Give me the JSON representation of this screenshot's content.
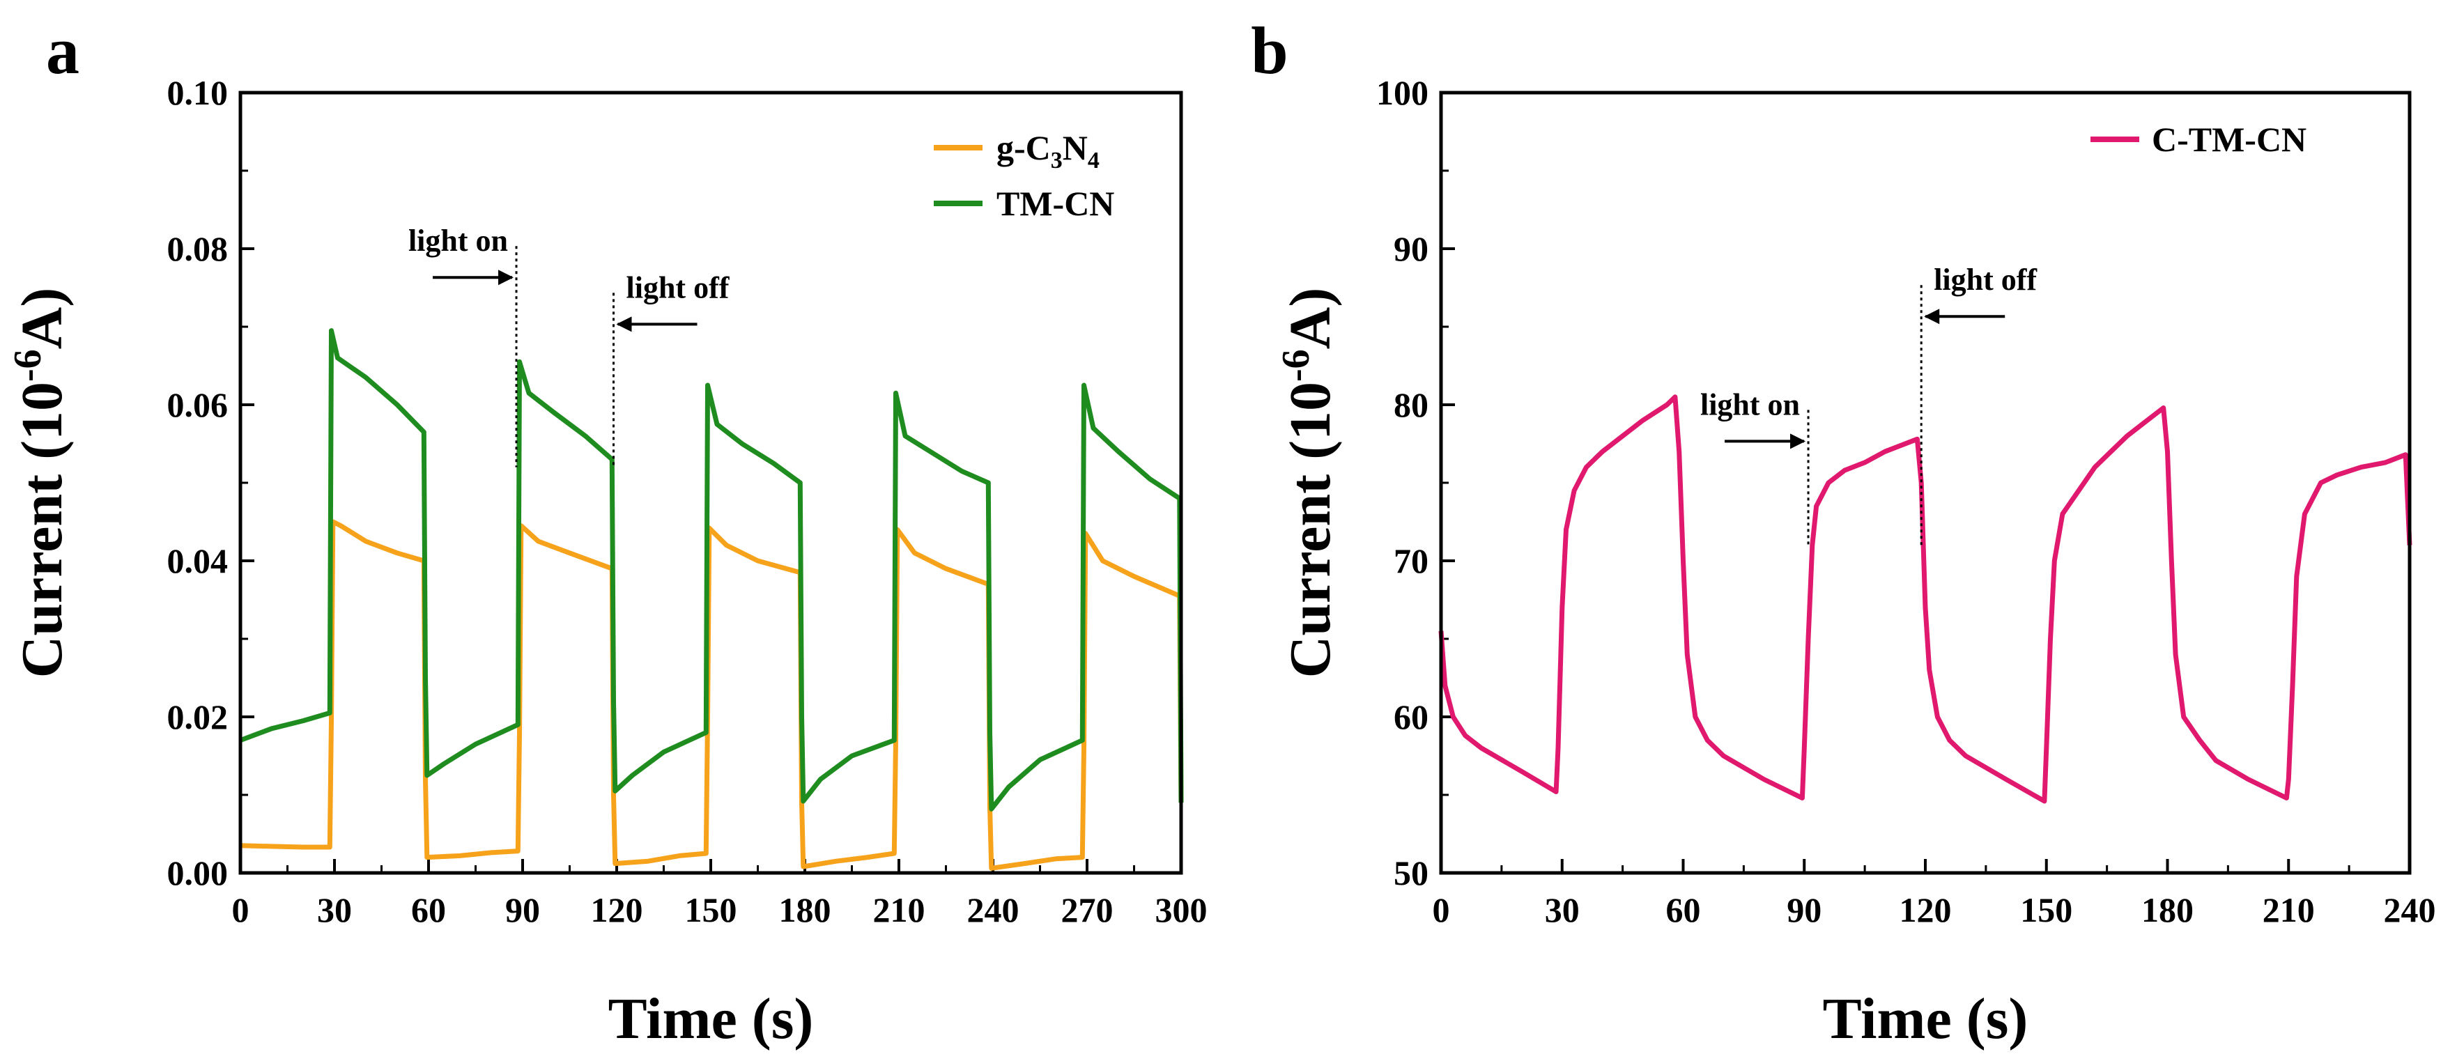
{
  "chart_data": [
    {
      "panel_label": "a",
      "type": "line",
      "xlabel": "Time (s)",
      "ylabel_parts": [
        "Current (10",
        "-6",
        "A)"
      ],
      "xlim": [
        0,
        300
      ],
      "ylim": [
        0,
        0.1
      ],
      "xticks": [
        0,
        30,
        60,
        90,
        120,
        150,
        180,
        210,
        240,
        270,
        300
      ],
      "yticks": [
        "0.00",
        "0.02",
        "0.04",
        "0.06",
        "0.08",
        "0.10"
      ],
      "legend": {
        "position": "top-right",
        "entries": [
          {
            "name": "g-C3N4",
            "parts": [
              {
                "t": "g-C"
              },
              {
                "t": "3",
                "sub": true
              },
              {
                "t": "N"
              },
              {
                "t": "4",
                "sub": true
              }
            ]
          },
          {
            "name": "TM-CN",
            "parts": [
              {
                "t": "TM-CN"
              }
            ]
          }
        ]
      },
      "annotations": [
        {
          "text": "light on",
          "at_x": 88,
          "at_y": 0.079,
          "arrow": "right"
        },
        {
          "text": "light off",
          "at_x": 119,
          "at_y": 0.073,
          "arrow": "left"
        }
      ],
      "series": [
        {
          "name": "g-C3N4",
          "color": "#F7A21B",
          "points": [
            [
              0,
              0.0035
            ],
            [
              10,
              0.0034
            ],
            [
              20,
              0.0033
            ],
            [
              28.5,
              0.0033
            ],
            [
              29,
              0.0195
            ],
            [
              29.5,
              0.045
            ],
            [
              32,
              0.0445
            ],
            [
              40,
              0.0425
            ],
            [
              50,
              0.041
            ],
            [
              58.5,
              0.04
            ],
            [
              59,
              0.012
            ],
            [
              59.5,
              0.002
            ],
            [
              70,
              0.0022
            ],
            [
              80,
              0.0026
            ],
            [
              88.5,
              0.0028
            ],
            [
              89,
              0.0178
            ],
            [
              89.5,
              0.0445
            ],
            [
              95,
              0.0425
            ],
            [
              105,
              0.041
            ],
            [
              118.5,
              0.039
            ],
            [
              119,
              0.01
            ],
            [
              119.5,
              0.0012
            ],
            [
              130,
              0.0015
            ],
            [
              140,
              0.0022
            ],
            [
              148.5,
              0.0025
            ],
            [
              149,
              0.02
            ],
            [
              149.5,
              0.0442
            ],
            [
              155,
              0.042
            ],
            [
              165,
              0.04
            ],
            [
              178.5,
              0.0385
            ],
            [
              179,
              0.009
            ],
            [
              179.5,
              0.0008
            ],
            [
              190,
              0.0015
            ],
            [
              200,
              0.002
            ],
            [
              208.5,
              0.0025
            ],
            [
              209,
              0.017
            ],
            [
              209.5,
              0.044
            ],
            [
              215,
              0.041
            ],
            [
              225,
              0.039
            ],
            [
              238.5,
              0.037
            ],
            [
              239,
              0.0085
            ],
            [
              239.5,
              0.0006
            ],
            [
              250,
              0.0012
            ],
            [
              260,
              0.0018
            ],
            [
              268.5,
              0.002
            ],
            [
              269,
              0.016
            ],
            [
              269.5,
              0.0435
            ],
            [
              275,
              0.04
            ],
            [
              285,
              0.038
            ],
            [
              299.5,
              0.0355
            ],
            [
              300,
              0.009
            ]
          ]
        },
        {
          "name": "TM-CN",
          "color": "#1E8C1E",
          "points": [
            [
              0,
              0.017
            ],
            [
              10,
              0.0185
            ],
            [
              20,
              0.0195
            ],
            [
              28.5,
              0.0205
            ],
            [
              29,
              0.0695
            ],
            [
              31,
              0.066
            ],
            [
              40,
              0.0635
            ],
            [
              50,
              0.06
            ],
            [
              58.5,
              0.0565
            ],
            [
              59,
              0.025
            ],
            [
              59.5,
              0.0125
            ],
            [
              65,
              0.014
            ],
            [
              75,
              0.0165
            ],
            [
              88.5,
              0.019
            ],
            [
              89,
              0.0655
            ],
            [
              92,
              0.0615
            ],
            [
              100,
              0.059
            ],
            [
              110,
              0.056
            ],
            [
              118.5,
              0.053
            ],
            [
              119,
              0.022
            ],
            [
              119.5,
              0.0105
            ],
            [
              125,
              0.0125
            ],
            [
              135,
              0.0155
            ],
            [
              148.5,
              0.018
            ],
            [
              149,
              0.0625
            ],
            [
              152,
              0.0575
            ],
            [
              160,
              0.055
            ],
            [
              170,
              0.0525
            ],
            [
              178.5,
              0.05
            ],
            [
              179,
              0.02
            ],
            [
              179.5,
              0.0092
            ],
            [
              185,
              0.012
            ],
            [
              195,
              0.015
            ],
            [
              208.5,
              0.017
            ],
            [
              209,
              0.0615
            ],
            [
              212,
              0.056
            ],
            [
              220,
              0.054
            ],
            [
              230,
              0.0515
            ],
            [
              238.5,
              0.05
            ],
            [
              239,
              0.018
            ],
            [
              239.5,
              0.0082
            ],
            [
              245,
              0.011
            ],
            [
              255,
              0.0145
            ],
            [
              268.5,
              0.017
            ],
            [
              269,
              0.0625
            ],
            [
              272,
              0.057
            ],
            [
              280,
              0.054
            ],
            [
              290,
              0.0505
            ],
            [
              299.5,
              0.048
            ],
            [
              300,
              0.009
            ]
          ]
        }
      ]
    },
    {
      "panel_label": "b",
      "type": "line",
      "xlabel": "Time (s)",
      "ylabel_parts": [
        "Current (10",
        "-6",
        "A)"
      ],
      "xlim": [
        0,
        240
      ],
      "ylim": [
        50,
        100
      ],
      "xticks": [
        0,
        30,
        60,
        90,
        120,
        150,
        180,
        210,
        240
      ],
      "yticks": [
        "50",
        "60",
        "70",
        "80",
        "90",
        "100"
      ],
      "legend": {
        "position": "top-right",
        "entries": [
          {
            "name": "C-TM-CN",
            "parts": [
              {
                "t": "C-TM-CN"
              }
            ]
          }
        ]
      },
      "annotations": [
        {
          "text": "light on",
          "at_x": 91,
          "at_y": 79,
          "arrow": "right"
        },
        {
          "text": "light off",
          "at_x": 119,
          "at_y": 87,
          "arrow": "left"
        }
      ],
      "series": [
        {
          "name": "C-TM-CN",
          "color": "#E0196E",
          "points": [
            [
              0,
              65.5
            ],
            [
              1,
              62
            ],
            [
              3,
              60
            ],
            [
              6,
              58.8
            ],
            [
              10,
              58
            ],
            [
              20,
              56.5
            ],
            [
              28.5,
              55.2
            ],
            [
              29,
              58
            ],
            [
              30,
              67
            ],
            [
              31,
              72
            ],
            [
              33,
              74.5
            ],
            [
              36,
              76
            ],
            [
              40,
              77
            ],
            [
              45,
              78
            ],
            [
              50,
              79
            ],
            [
              56,
              80
            ],
            [
              58,
              80.5
            ],
            [
              59,
              77
            ],
            [
              60,
              70
            ],
            [
              61,
              64
            ],
            [
              63,
              60
            ],
            [
              66,
              58.5
            ],
            [
              70,
              57.5
            ],
            [
              80,
              56
            ],
            [
              89.5,
              54.8
            ],
            [
              90,
              58
            ],
            [
              91,
              65
            ],
            [
              92,
              71
            ],
            [
              93,
              73.5
            ],
            [
              96,
              75
            ],
            [
              100,
              75.8
            ],
            [
              105,
              76.3
            ],
            [
              110,
              77
            ],
            [
              118,
              77.8
            ],
            [
              119,
              75
            ],
            [
              120,
              67
            ],
            [
              121,
              63
            ],
            [
              123,
              60
            ],
            [
              126,
              58.5
            ],
            [
              130,
              57.5
            ],
            [
              140,
              56
            ],
            [
              149.5,
              54.6
            ],
            [
              150,
              58
            ],
            [
              151,
              65
            ],
            [
              152,
              70
            ],
            [
              154,
              73
            ],
            [
              158,
              74.5
            ],
            [
              162,
              76
            ],
            [
              166,
              77
            ],
            [
              170,
              78
            ],
            [
              175,
              79
            ],
            [
              179,
              79.8
            ],
            [
              180,
              77
            ],
            [
              181,
              70
            ],
            [
              182,
              64
            ],
            [
              184,
              60
            ],
            [
              188,
              58.5
            ],
            [
              192,
              57.2
            ],
            [
              200,
              56
            ],
            [
              209.5,
              54.8
            ],
            [
              210,
              56
            ],
            [
              211,
              62
            ],
            [
              212,
              69
            ],
            [
              214,
              73
            ],
            [
              218,
              75
            ],
            [
              222,
              75.5
            ],
            [
              228,
              76
            ],
            [
              234,
              76.3
            ],
            [
              239,
              76.8
            ],
            [
              240,
              71
            ]
          ]
        }
      ]
    }
  ]
}
